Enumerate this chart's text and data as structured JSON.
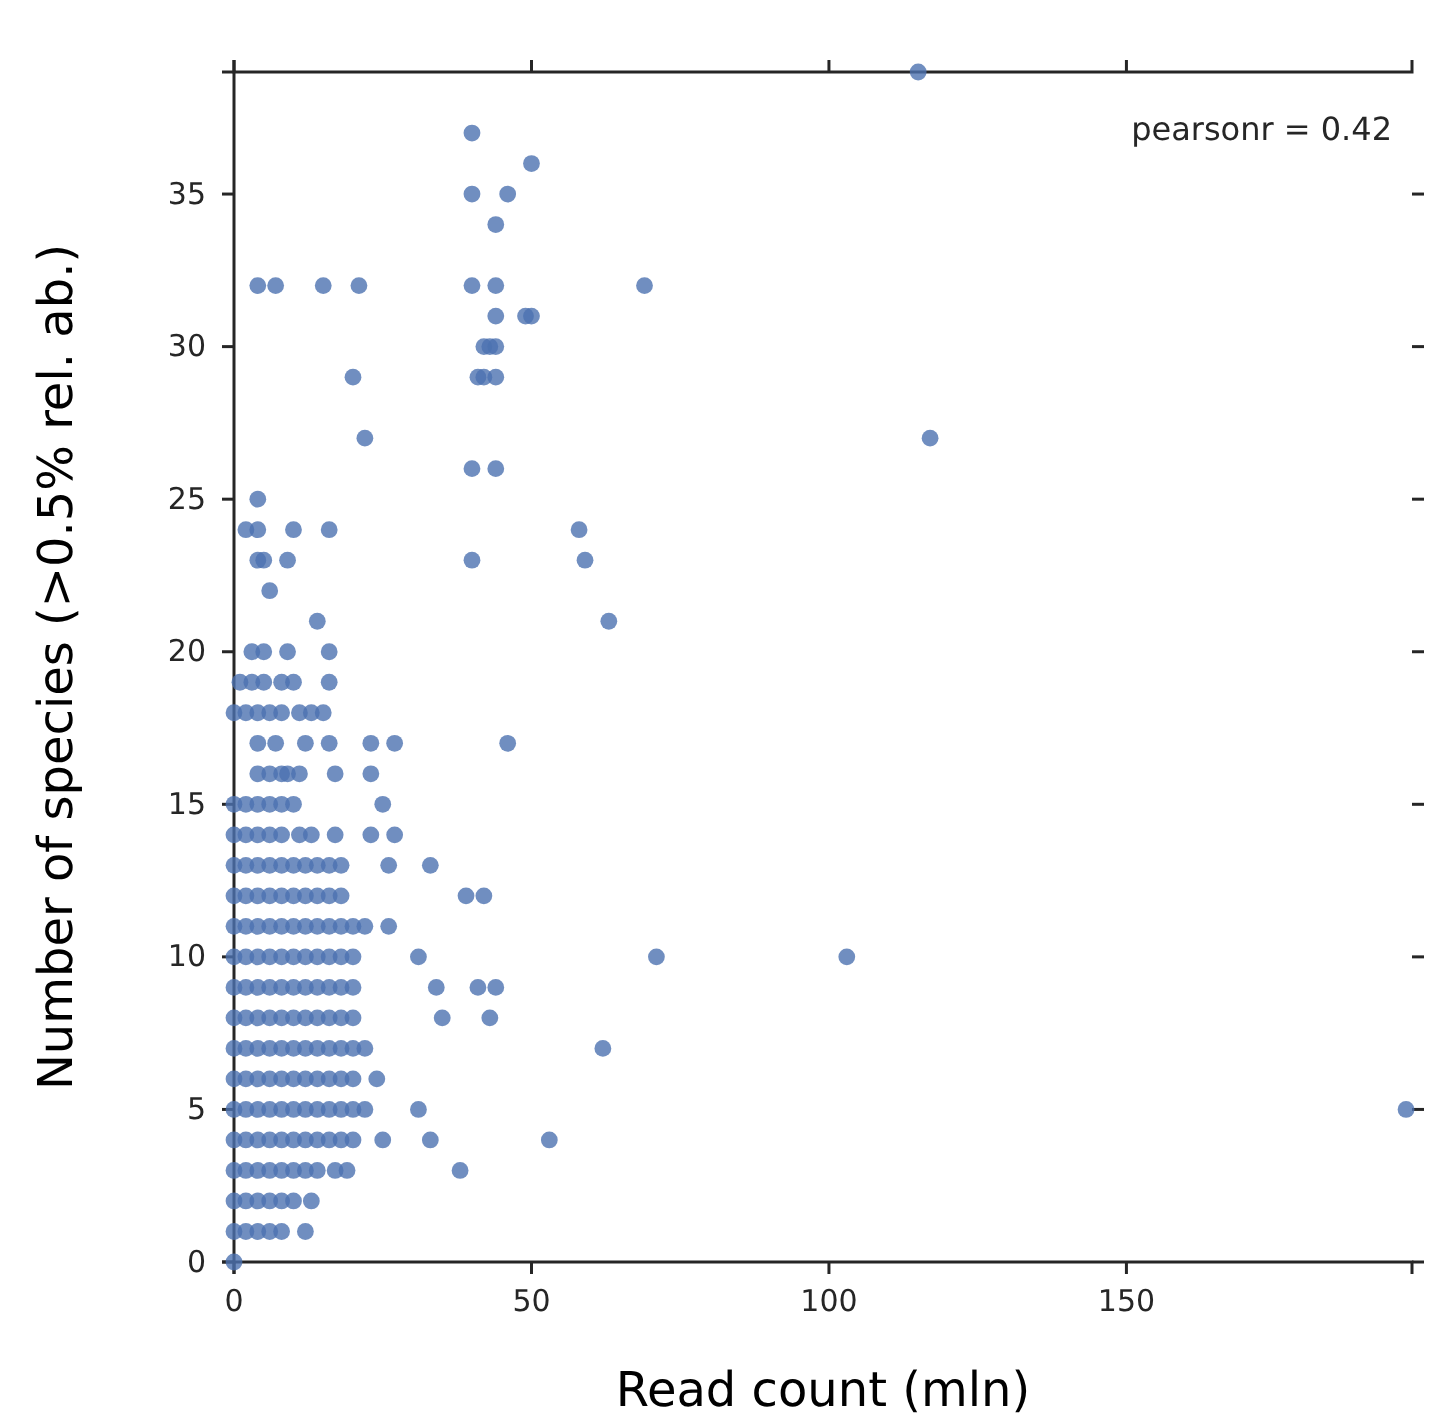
{
  "chart_data": {
    "type": "scatter",
    "xlabel": "Read count (mln)",
    "ylabel": "Number of species (>0.5% rel. ab.)",
    "annotations": [
      "pearsonr = 0.42"
    ],
    "xlim": [
      0,
      198
    ],
    "xticks": [
      0,
      50,
      100,
      150
    ],
    "ylim": [
      0,
      39
    ],
    "yticks": [
      0,
      5,
      10,
      15,
      20,
      25,
      30,
      35
    ],
    "grid": false,
    "marker": "circle",
    "series": [
      {
        "color": "#4c72b0",
        "x": [
          115,
          40,
          50,
          40,
          46,
          44,
          4,
          7,
          15,
          21,
          40,
          44,
          69,
          44,
          49,
          50,
          42,
          43,
          44,
          20,
          41,
          42,
          44,
          22,
          117,
          40,
          44,
          4,
          2,
          4,
          10,
          16,
          58,
          4,
          5,
          9,
          40,
          59,
          6,
          14,
          63,
          3,
          5,
          9,
          16,
          1,
          3,
          5,
          8,
          10,
          16,
          0,
          2,
          4,
          6,
          8,
          11,
          13,
          15,
          4,
          7,
          12,
          16,
          23,
          27,
          46,
          4,
          6,
          8,
          9,
          11,
          17,
          23,
          0,
          2,
          4,
          6,
          8,
          10,
          25,
          0,
          2,
          4,
          6,
          8,
          11,
          13,
          17,
          23,
          27,
          0,
          2,
          4,
          6,
          8,
          10,
          12,
          14,
          16,
          18,
          26,
          33,
          0,
          2,
          4,
          6,
          8,
          10,
          12,
          14,
          16,
          18,
          39,
          42,
          0,
          2,
          4,
          6,
          8,
          10,
          12,
          14,
          16,
          18,
          20,
          22,
          26,
          0,
          2,
          4,
          6,
          8,
          10,
          12,
          14,
          16,
          18,
          20,
          31,
          71,
          103,
          0,
          2,
          4,
          6,
          8,
          10,
          12,
          14,
          16,
          18,
          20,
          34,
          41,
          44,
          0,
          2,
          4,
          6,
          8,
          10,
          12,
          14,
          16,
          18,
          20,
          35,
          43,
          0,
          2,
          4,
          6,
          8,
          10,
          12,
          14,
          16,
          18,
          20,
          22,
          62,
          0,
          2,
          4,
          6,
          8,
          10,
          12,
          14,
          16,
          18,
          20,
          24,
          0,
          2,
          4,
          6,
          8,
          10,
          12,
          14,
          16,
          18,
          20,
          22,
          31,
          197,
          0,
          2,
          4,
          6,
          8,
          10,
          12,
          14,
          16,
          18,
          20,
          25,
          33,
          53,
          0,
          2,
          4,
          6,
          8,
          10,
          12,
          14,
          17,
          19,
          38,
          0,
          2,
          4,
          6,
          8,
          10,
          13,
          0,
          2,
          4,
          6,
          8,
          12,
          0
        ],
        "values": [
          39,
          37,
          36,
          35,
          35,
          34,
          32,
          32,
          32,
          32,
          32,
          32,
          32,
          31,
          31,
          31,
          30,
          30,
          30,
          29,
          29,
          29,
          29,
          27,
          27,
          26,
          26,
          25,
          24,
          24,
          24,
          24,
          24,
          23,
          23,
          23,
          23,
          23,
          22,
          21,
          21,
          20,
          20,
          20,
          20,
          19,
          19,
          19,
          19,
          19,
          19,
          18,
          18,
          18,
          18,
          18,
          18,
          18,
          18,
          17,
          17,
          17,
          17,
          17,
          17,
          17,
          16,
          16,
          16,
          16,
          16,
          16,
          16,
          15,
          15,
          15,
          15,
          15,
          15,
          15,
          14,
          14,
          14,
          14,
          14,
          14,
          14,
          14,
          14,
          14,
          13,
          13,
          13,
          13,
          13,
          13,
          13,
          13,
          13,
          13,
          13,
          13,
          12,
          12,
          12,
          12,
          12,
          12,
          12,
          12,
          12,
          12,
          12,
          12,
          11,
          11,
          11,
          11,
          11,
          11,
          11,
          11,
          11,
          11,
          11,
          11,
          11,
          10,
          10,
          10,
          10,
          10,
          10,
          10,
          10,
          10,
          10,
          10,
          10,
          10,
          10,
          9,
          9,
          9,
          9,
          9,
          9,
          9,
          9,
          9,
          9,
          9,
          9,
          9,
          9,
          8,
          8,
          8,
          8,
          8,
          8,
          8,
          8,
          8,
          8,
          8,
          8,
          8,
          7,
          7,
          7,
          7,
          7,
          7,
          7,
          7,
          7,
          7,
          7,
          7,
          7,
          6,
          6,
          6,
          6,
          6,
          6,
          6,
          6,
          6,
          6,
          6,
          6,
          5,
          5,
          5,
          5,
          5,
          5,
          5,
          5,
          5,
          5,
          5,
          5,
          5,
          5,
          4,
          4,
          4,
          4,
          4,
          4,
          4,
          4,
          4,
          4,
          4,
          4,
          4,
          4,
          3,
          3,
          3,
          3,
          3,
          3,
          3,
          3,
          3,
          3,
          3,
          2,
          2,
          2,
          2,
          2,
          2,
          2,
          1,
          1,
          1,
          1,
          1,
          1,
          0
        ]
      }
    ]
  }
}
